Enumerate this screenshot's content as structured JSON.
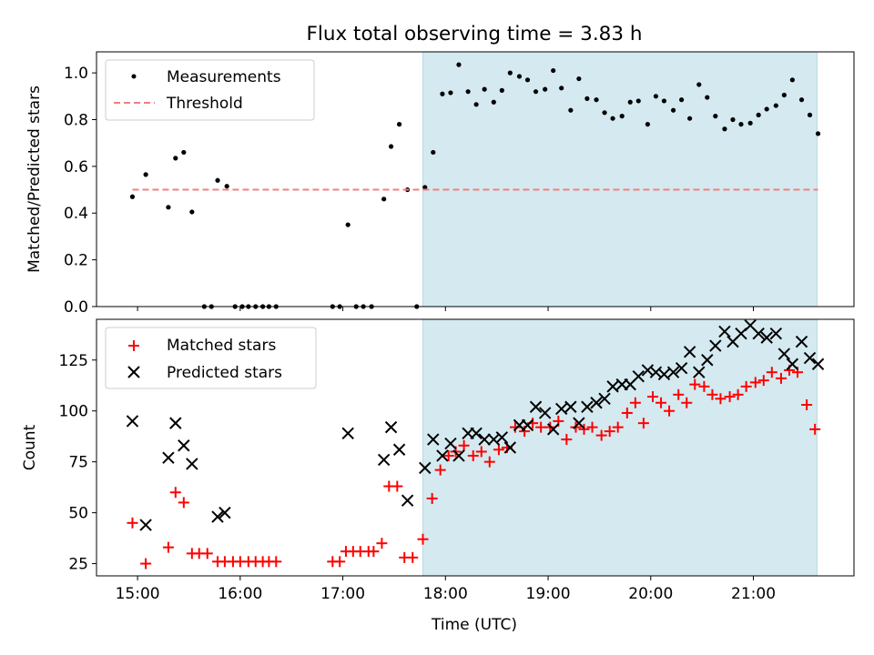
{
  "chart_data": {
    "type": "scatter",
    "title": "Flux total observing time = 3.83 h",
    "xlabel": "Time (UTC)",
    "x_tick_labels": [
      "15:00",
      "16:00",
      "17:00",
      "18:00",
      "19:00",
      "20:00",
      "21:00"
    ],
    "x_tick_values": [
      15,
      16,
      17,
      18,
      19,
      20,
      21
    ],
    "xlim": [
      14.6,
      21.98
    ],
    "shaded_region": {
      "x": [
        17.78,
        21.62
      ],
      "color": "#d4eaf0"
    },
    "panels": [
      {
        "ylabel": "Matched/Predicted stars",
        "ylim": [
          0,
          1.09
        ],
        "y_tick_values": [
          0,
          0.2,
          0.4,
          0.6,
          0.8,
          1.0
        ],
        "y_tick_labels": [
          "0.0",
          "0.2",
          "0.4",
          "0.6",
          "0.8",
          "1.0"
        ],
        "legend_position": "upper-left",
        "series": [
          {
            "name": "Measurements",
            "marker": "dot",
            "color": "#000000",
            "points": [
              [
                14.95,
                0.47
              ],
              [
                15.08,
                0.565
              ],
              [
                15.3,
                0.425
              ],
              [
                15.37,
                0.635
              ],
              [
                15.45,
                0.66
              ],
              [
                15.53,
                0.405
              ],
              [
                15.65,
                0.0
              ],
              [
                15.72,
                0.0
              ],
              [
                15.78,
                0.54
              ],
              [
                15.87,
                0.515
              ],
              [
                15.95,
                0.0
              ],
              [
                16.02,
                0.0
              ],
              [
                16.08,
                0.0
              ],
              [
                16.15,
                0.0
              ],
              [
                16.22,
                0.0
              ],
              [
                16.28,
                0.0
              ],
              [
                16.35,
                0.0
              ],
              [
                16.9,
                0.0
              ],
              [
                16.97,
                0.0
              ],
              [
                17.05,
                0.35
              ],
              [
                17.13,
                0.0
              ],
              [
                17.2,
                0.0
              ],
              [
                17.28,
                0.0
              ],
              [
                17.4,
                0.46
              ],
              [
                17.47,
                0.685
              ],
              [
                17.55,
                0.78
              ],
              [
                17.63,
                0.5
              ],
              [
                17.72,
                0.0
              ],
              [
                17.8,
                0.51
              ],
              [
                17.88,
                0.66
              ],
              [
                17.97,
                0.91
              ],
              [
                18.05,
                0.915
              ],
              [
                18.13,
                1.035
              ],
              [
                18.22,
                0.92
              ],
              [
                18.3,
                0.865
              ],
              [
                18.38,
                0.93
              ],
              [
                18.47,
                0.875
              ],
              [
                18.55,
                0.925
              ],
              [
                18.63,
                1.0
              ],
              [
                18.72,
                0.985
              ],
              [
                18.8,
                0.97
              ],
              [
                18.88,
                0.92
              ],
              [
                18.97,
                0.93
              ],
              [
                19.05,
                1.01
              ],
              [
                19.13,
                0.935
              ],
              [
                19.22,
                0.84
              ],
              [
                19.3,
                0.975
              ],
              [
                19.38,
                0.89
              ],
              [
                19.47,
                0.885
              ],
              [
                19.55,
                0.83
              ],
              [
                19.63,
                0.805
              ],
              [
                19.72,
                0.815
              ],
              [
                19.8,
                0.875
              ],
              [
                19.88,
                0.88
              ],
              [
                19.97,
                0.78
              ],
              [
                20.05,
                0.9
              ],
              [
                20.13,
                0.88
              ],
              [
                20.22,
                0.84
              ],
              [
                20.3,
                0.885
              ],
              [
                20.38,
                0.805
              ],
              [
                20.47,
                0.95
              ],
              [
                20.55,
                0.895
              ],
              [
                20.63,
                0.815
              ],
              [
                20.72,
                0.76
              ],
              [
                20.8,
                0.8
              ],
              [
                20.88,
                0.78
              ],
              [
                20.97,
                0.785
              ],
              [
                21.05,
                0.82
              ],
              [
                21.13,
                0.845
              ],
              [
                21.22,
                0.86
              ],
              [
                21.3,
                0.905
              ],
              [
                21.38,
                0.97
              ],
              [
                21.47,
                0.885
              ],
              [
                21.55,
                0.82
              ],
              [
                21.63,
                0.74
              ]
            ]
          },
          {
            "name": "Threshold",
            "marker": "dashed-line",
            "color": "#f08080",
            "points": [
              [
                14.95,
                0.5
              ],
              [
                21.63,
                0.5
              ]
            ]
          }
        ]
      },
      {
        "ylabel": "Count",
        "ylim": [
          19,
          145
        ],
        "y_tick_values": [
          25,
          50,
          75,
          100,
          125
        ],
        "y_tick_labels": [
          "25",
          "50",
          "75",
          "100",
          "125"
        ],
        "legend_position": "upper-left",
        "series": [
          {
            "name": "Matched stars",
            "marker": "plus",
            "color": "#ff0000",
            "points": [
              [
                14.95,
                45
              ],
              [
                15.08,
                25
              ],
              [
                15.3,
                33
              ],
              [
                15.37,
                60
              ],
              [
                15.45,
                55
              ],
              [
                15.53,
                30
              ],
              [
                15.6,
                30
              ],
              [
                15.68,
                30
              ],
              [
                15.78,
                26
              ],
              [
                15.85,
                26
              ],
              [
                15.93,
                26
              ],
              [
                16.0,
                26
              ],
              [
                16.08,
                26
              ],
              [
                16.15,
                26
              ],
              [
                16.22,
                26
              ],
              [
                16.28,
                26
              ],
              [
                16.35,
                26
              ],
              [
                16.9,
                26
              ],
              [
                16.97,
                26
              ],
              [
                17.03,
                31
              ],
              [
                17.1,
                31
              ],
              [
                17.17,
                31
              ],
              [
                17.25,
                31
              ],
              [
                17.3,
                31
              ],
              [
                17.38,
                35
              ],
              [
                17.45,
                63
              ],
              [
                17.53,
                63
              ],
              [
                17.6,
                28
              ],
              [
                17.68,
                28
              ],
              [
                17.78,
                37
              ],
              [
                17.87,
                57
              ],
              [
                17.95,
                71
              ],
              [
                18.03,
                78
              ],
              [
                18.1,
                80
              ],
              [
                18.18,
                83
              ],
              [
                18.27,
                78
              ],
              [
                18.35,
                80
              ],
              [
                18.43,
                75
              ],
              [
                18.52,
                81
              ],
              [
                18.6,
                82
              ],
              [
                18.68,
                92
              ],
              [
                18.77,
                90
              ],
              [
                18.85,
                94
              ],
              [
                18.93,
                92
              ],
              [
                19.02,
                92
              ],
              [
                19.1,
                95
              ],
              [
                19.18,
                86
              ],
              [
                19.27,
                92
              ],
              [
                19.35,
                91
              ],
              [
                19.43,
                92
              ],
              [
                19.52,
                88
              ],
              [
                19.6,
                90
              ],
              [
                19.68,
                92
              ],
              [
                19.77,
                99
              ],
              [
                19.85,
                104
              ],
              [
                19.93,
                94
              ],
              [
                20.02,
                107
              ],
              [
                20.1,
                104
              ],
              [
                20.18,
                100
              ],
              [
                20.27,
                108
              ],
              [
                20.35,
                104
              ],
              [
                20.43,
                113
              ],
              [
                20.52,
                112
              ],
              [
                20.6,
                108
              ],
              [
                20.68,
                106
              ],
              [
                20.77,
                107
              ],
              [
                20.85,
                108
              ],
              [
                20.93,
                112
              ],
              [
                21.02,
                114
              ],
              [
                21.1,
                115
              ],
              [
                21.18,
                119
              ],
              [
                21.27,
                116
              ],
              [
                21.35,
                120
              ],
              [
                21.43,
                119
              ],
              [
                21.52,
                103
              ],
              [
                21.6,
                91
              ]
            ]
          },
          {
            "name": "Predicted stars",
            "marker": "x",
            "color": "#000000",
            "points": [
              [
                14.95,
                95
              ],
              [
                15.08,
                44
              ],
              [
                15.3,
                77
              ],
              [
                15.37,
                94
              ],
              [
                15.45,
                83
              ],
              [
                15.53,
                74
              ],
              [
                15.78,
                48
              ],
              [
                15.85,
                50
              ],
              [
                17.05,
                89
              ],
              [
                17.4,
                76
              ],
              [
                17.47,
                92
              ],
              [
                17.55,
                81
              ],
              [
                17.63,
                56
              ],
              [
                17.8,
                72
              ],
              [
                17.88,
                86
              ],
              [
                17.97,
                78
              ],
              [
                18.05,
                84
              ],
              [
                18.13,
                78
              ],
              [
                18.22,
                89
              ],
              [
                18.3,
                89
              ],
              [
                18.38,
                86
              ],
              [
                18.47,
                86
              ],
              [
                18.55,
                87
              ],
              [
                18.63,
                82
              ],
              [
                18.72,
                93
              ],
              [
                18.8,
                93
              ],
              [
                18.88,
                102
              ],
              [
                18.97,
                99
              ],
              [
                19.05,
                91
              ],
              [
                19.13,
                101
              ],
              [
                19.22,
                102
              ],
              [
                19.3,
                94
              ],
              [
                19.38,
                102
              ],
              [
                19.47,
                104
              ],
              [
                19.55,
                106
              ],
              [
                19.63,
                112
              ],
              [
                19.72,
                113
              ],
              [
                19.8,
                113
              ],
              [
                19.88,
                117
              ],
              [
                19.97,
                120
              ],
              [
                20.05,
                119
              ],
              [
                20.13,
                118
              ],
              [
                20.22,
                119
              ],
              [
                20.3,
                121
              ],
              [
                20.38,
                129
              ],
              [
                20.47,
                119
              ],
              [
                20.55,
                125
              ],
              [
                20.63,
                132
              ],
              [
                20.72,
                139
              ],
              [
                20.8,
                134
              ],
              [
                20.88,
                138
              ],
              [
                20.97,
                142
              ],
              [
                21.05,
                138
              ],
              [
                21.13,
                136
              ],
              [
                21.22,
                138
              ],
              [
                21.3,
                128
              ],
              [
                21.38,
                123
              ],
              [
                21.47,
                134
              ],
              [
                21.55,
                126
              ],
              [
                21.63,
                123
              ]
            ]
          }
        ]
      }
    ]
  }
}
